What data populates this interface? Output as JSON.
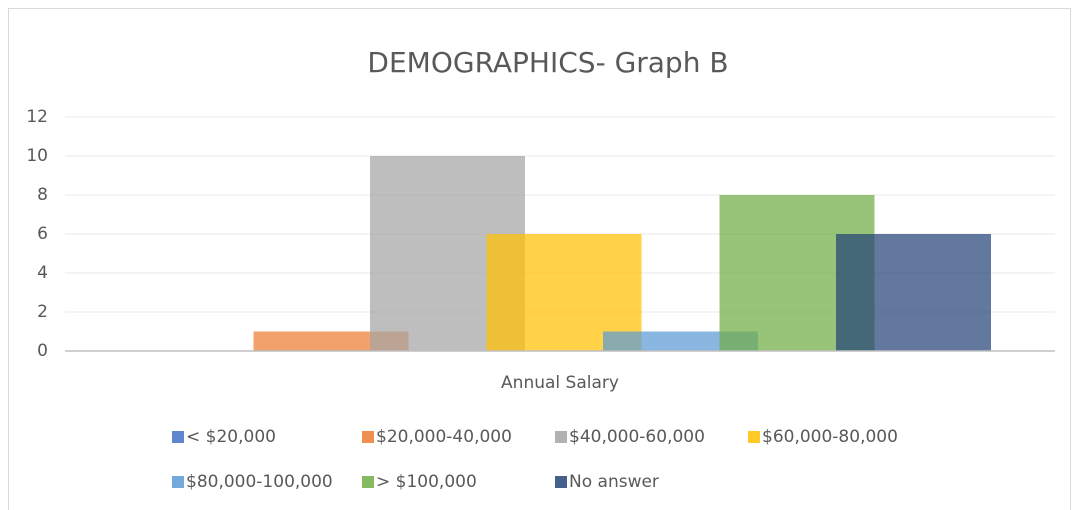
{
  "chart_data": {
    "type": "bar",
    "title": "DEMOGRAPHICS- Graph B",
    "categories": [
      "Annual Salary"
    ],
    "series": [
      {
        "name": "< $20,000",
        "color": "#4472c4",
        "values": [
          0
        ]
      },
      {
        "name": "$20,000-40,000",
        "color": "#ed7d31",
        "values": [
          1
        ]
      },
      {
        "name": "$40,000-60,000",
        "color": "#a5a5a5",
        "values": [
          10
        ]
      },
      {
        "name": "$60,000-80,000",
        "color": "#ffc000",
        "values": [
          6
        ]
      },
      {
        "name": "$80,000-100,000",
        "color": "#5b9bd5",
        "values": [
          1
        ]
      },
      {
        "name": "> $100,000",
        "color": "#70ad47",
        "values": [
          8
        ]
      },
      {
        "name": "No answer",
        "color": "#264478",
        "values": [
          6
        ]
      }
    ],
    "ylim": [
      0,
      12
    ],
    "yticks": [
      0,
      2,
      4,
      6,
      8,
      10,
      12
    ],
    "grid": true,
    "legend": "bottom"
  }
}
